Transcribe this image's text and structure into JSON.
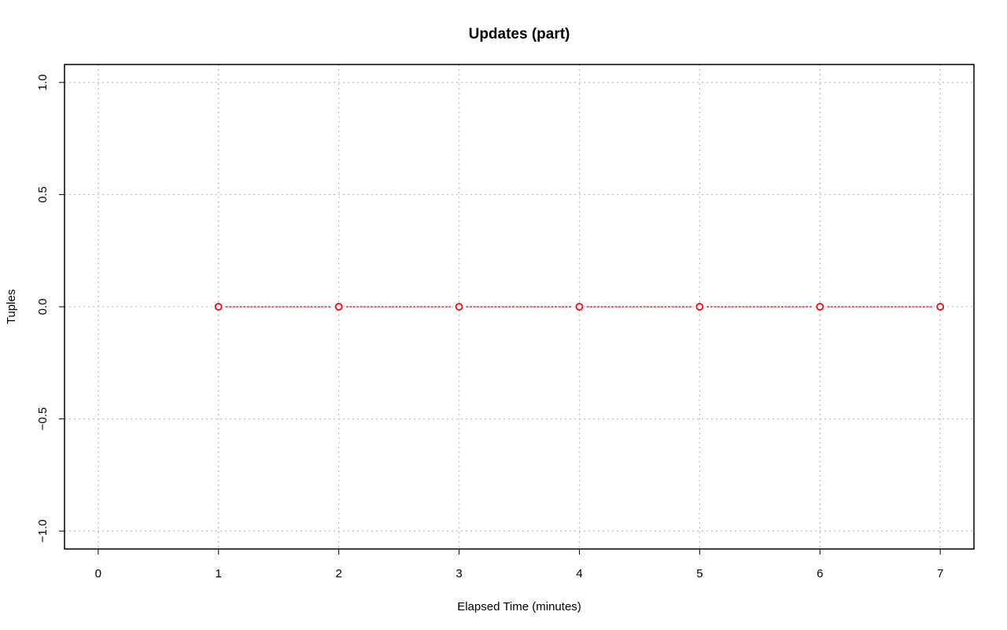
{
  "chart_data": {
    "type": "line",
    "title": "Updates (part)",
    "xlabel": "Elapsed Time (minutes)",
    "ylabel": "Tuples",
    "xlim": [
      -0.28,
      7.28
    ],
    "ylim": [
      -1.08,
      1.08
    ],
    "x_ticks": [
      0,
      1,
      2,
      3,
      4,
      5,
      6,
      7
    ],
    "x_tick_labels": [
      "0",
      "1",
      "2",
      "3",
      "4",
      "5",
      "6",
      "7"
    ],
    "y_ticks": [
      -1.0,
      -0.5,
      0.0,
      0.5,
      1.0
    ],
    "y_tick_labels": [
      "−1.0",
      "−0.5",
      "0.0",
      "0.5",
      "1.0"
    ],
    "grid": true,
    "series": [
      {
        "color": "#ff0000",
        "line_style": "dashed",
        "marker": "open-circle",
        "x": [
          1,
          2,
          3,
          4,
          5,
          6,
          7
        ],
        "y": [
          0,
          0,
          0,
          0,
          0,
          0,
          0
        ]
      }
    ]
  }
}
